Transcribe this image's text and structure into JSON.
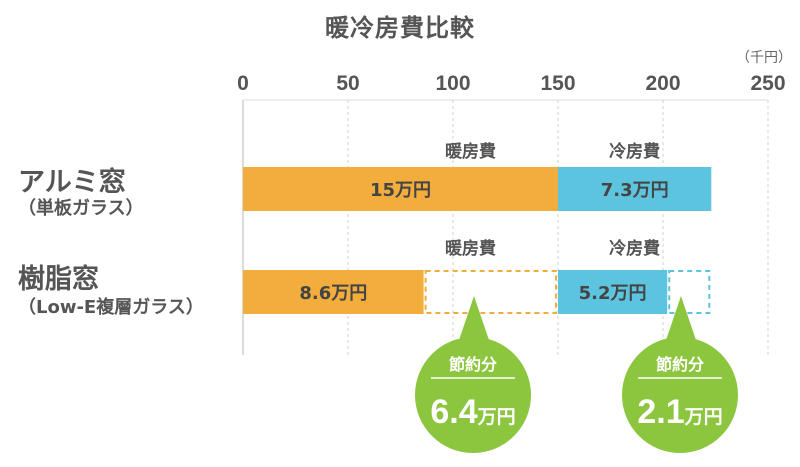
{
  "chart_data": {
    "type": "bar",
    "title": "暖冷房費比較",
    "unit": "（千円）",
    "xlim": [
      0,
      250
    ],
    "x_ticks": [
      0,
      50,
      100,
      150,
      200,
      250
    ],
    "grid": true,
    "categories": [
      {
        "name": "アルミ窓",
        "sub": "（単板ガラス）"
      },
      {
        "name": "樹脂窓",
        "sub": "（Low-E複層ガラス）"
      }
    ],
    "series": [
      {
        "name": "暖房費",
        "color": "#f2ad3c",
        "values": [
          150,
          86
        ],
        "labels": [
          "15万円",
          "8.6万円"
        ]
      },
      {
        "name": "冷房費",
        "color": "#5cc4de",
        "values": [
          73,
          52
        ],
        "labels": [
          "7.3万円",
          "5.2万円"
        ]
      }
    ],
    "savings": [
      {
        "title": "節約分",
        "value": "6.4",
        "unit": "万円",
        "color": "#8cc63f"
      },
      {
        "title": "節約分",
        "value": "2.1",
        "unit": "万円",
        "color": "#8cc63f"
      }
    ]
  }
}
